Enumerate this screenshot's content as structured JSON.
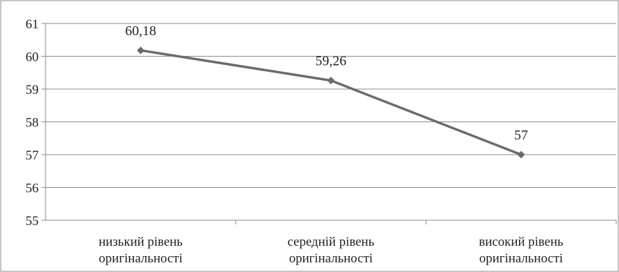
{
  "chart_data": {
    "type": "line",
    "categories": [
      [
        "низький рівень",
        "оригінальності"
      ],
      [
        "середній рівень",
        "оригінальності"
      ],
      [
        "високий рівень",
        "оригінальності"
      ]
    ],
    "series": [
      {
        "values": [
          60.18,
          59.26,
          57
        ],
        "labels": [
          "60,18",
          "59,26",
          "57"
        ],
        "color": "#6b6b6b",
        "marker": "diamond"
      }
    ],
    "yticks": [
      "55",
      "56",
      "57",
      "58",
      "59",
      "60",
      "61"
    ],
    "ylim": [
      55,
      61
    ],
    "grid": true
  }
}
